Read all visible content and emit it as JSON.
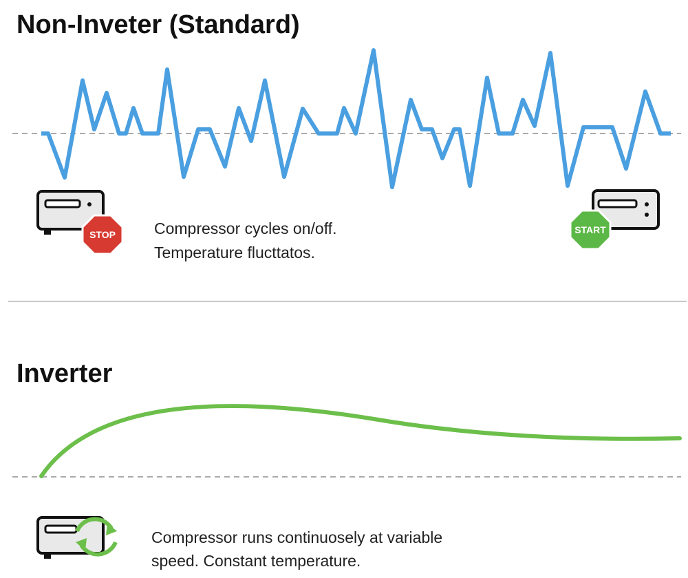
{
  "sections": [
    {
      "title": "Non-Inveter (Standard)",
      "badges": {
        "stop": "STOP",
        "start": "START"
      },
      "caption": [
        "Compressor cycles on/off.",
        "Temperature flucttatos."
      ]
    },
    {
      "title": "Inverter",
      "caption": [
        "Compressor runs continuosely at variable",
        "speed. Constant temperature."
      ]
    }
  ]
}
